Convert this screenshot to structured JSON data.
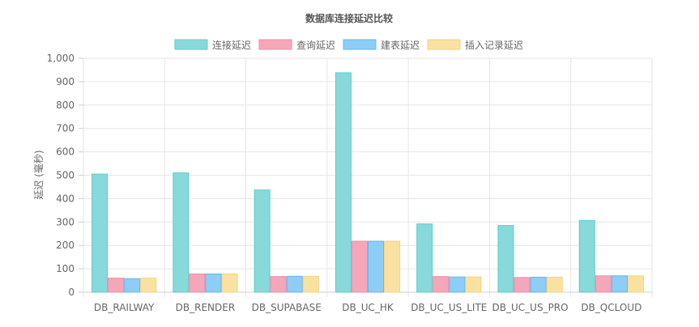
{
  "chart_data": {
    "type": "bar",
    "title": "数据库连接延迟比较",
    "ylabel": "延迟 (毫秒)",
    "xlabel": "",
    "ylim": [
      0,
      1000
    ],
    "yticks": [
      "0",
      "100",
      "200",
      "300",
      "400",
      "500",
      "600",
      "700",
      "800",
      "900",
      "1,000"
    ],
    "grid": true,
    "legend_position": "top-center",
    "categories": [
      "DB_RAILWAY",
      "DB_RENDER",
      "DB_SUPABASE",
      "DB_UC_HK",
      "DB_UC_US_LITE",
      "DB_UC_US_PRO",
      "DB_QCLOUD"
    ],
    "series": [
      {
        "name": "连接延迟",
        "color": "#88d9d9",
        "border": "#60cccc",
        "values": [
          505,
          510,
          437,
          938,
          292,
          285,
          307
        ]
      },
      {
        "name": "查询延迟",
        "color": "#f5a7ba",
        "border": "#ef8ca6",
        "values": [
          60,
          78,
          67,
          218,
          67,
          63,
          70
        ]
      },
      {
        "name": "建表延迟",
        "color": "#8ecdf5",
        "border": "#63b8ee",
        "values": [
          58,
          78,
          68,
          218,
          65,
          64,
          70
        ]
      },
      {
        "name": "插入记录延迟",
        "color": "#f9e2a1",
        "border": "#f5d37d",
        "values": [
          60,
          78,
          68,
          218,
          65,
          64,
          70
        ]
      }
    ]
  }
}
